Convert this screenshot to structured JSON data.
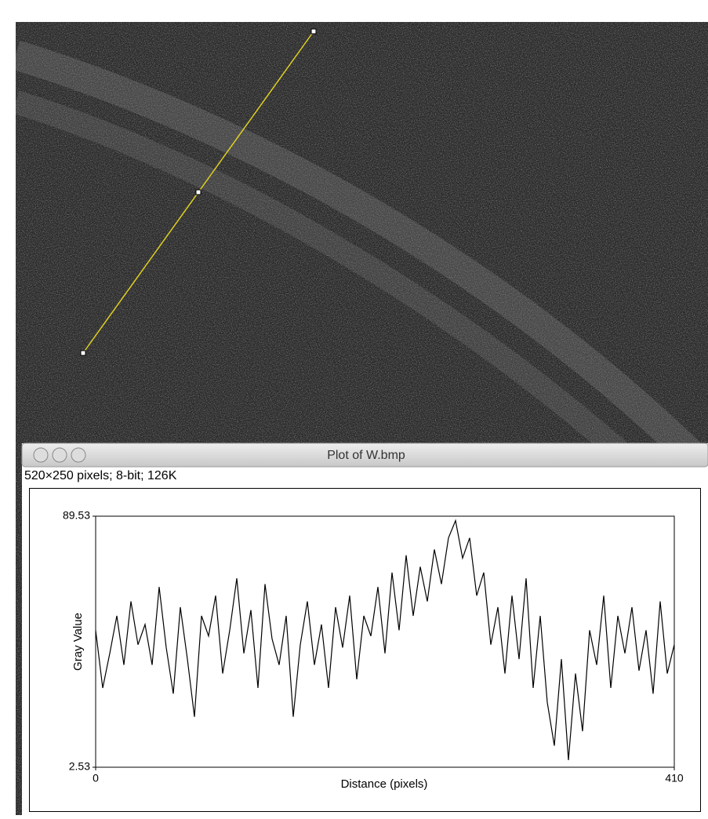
{
  "window": {
    "title": "Plot of W.bmp",
    "info": "520×250 pixels; 8-bit; 126K"
  },
  "chart_data": {
    "type": "line",
    "x_label": "Distance (pixels)",
    "y_label": "Gray Value",
    "x": [
      0,
      5,
      10,
      15,
      20,
      25,
      30,
      35,
      40,
      45,
      50,
      55,
      60,
      65,
      70,
      75,
      80,
      85,
      90,
      95,
      100,
      105,
      110,
      115,
      120,
      125,
      130,
      135,
      140,
      145,
      150,
      155,
      160,
      165,
      170,
      175,
      180,
      185,
      190,
      195,
      200,
      205,
      210,
      215,
      220,
      225,
      230,
      235,
      240,
      245,
      250,
      255,
      260,
      265,
      270,
      275,
      280,
      285,
      290,
      295,
      300,
      305,
      310,
      315,
      320,
      325,
      330,
      335,
      340,
      345,
      350,
      355,
      360,
      365,
      370,
      375,
      380,
      385,
      390,
      395,
      400,
      405,
      410
    ],
    "values": [
      50,
      30,
      42,
      55,
      38,
      60,
      45,
      52,
      38,
      65,
      44,
      28,
      58,
      40,
      20,
      55,
      48,
      62,
      35,
      50,
      68,
      42,
      57,
      30,
      66,
      47,
      38,
      55,
      20,
      45,
      60,
      38,
      52,
      30,
      58,
      44,
      62,
      33,
      55,
      48,
      65,
      42,
      70,
      50,
      76,
      55,
      72,
      60,
      78,
      66,
      82,
      88,
      75,
      82,
      62,
      70,
      45,
      58,
      35,
      62,
      40,
      68,
      30,
      55,
      25,
      10,
      40,
      5,
      35,
      15,
      50,
      38,
      62,
      30,
      55,
      42,
      58,
      36,
      50,
      28,
      60,
      35,
      45
    ],
    "color": "#000000",
    "xlim": [
      0,
      410
    ],
    "ylim": [
      2.53,
      89.53
    ],
    "xticks": [
      0,
      410
    ],
    "yticks": [
      89.53,
      2.53
    ]
  }
}
